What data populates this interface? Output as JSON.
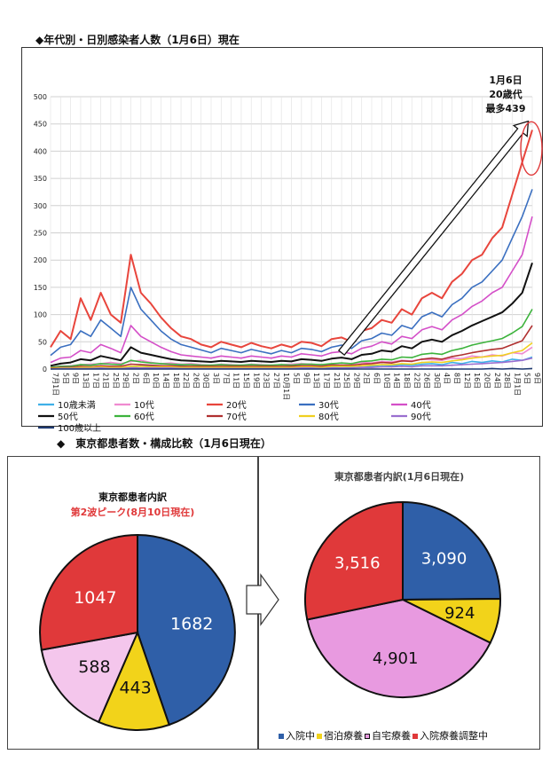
{
  "headings": {
    "top": "◆年代別・日別感染者人数（1月6日）現在",
    "mid": "◆　東京都患者数・構成比較（1月6日現在）"
  },
  "annotation": {
    "line1": "1月6日",
    "line2": "20歳代",
    "line3": "最多439"
  },
  "chart_data": [
    {
      "type": "line",
      "title": "年代別・日別感染者人数（1月6日）現在",
      "ylim": [
        0,
        500
      ],
      "yticks": [
        0,
        50,
        100,
        150,
        200,
        250,
        300,
        350,
        400,
        450,
        500
      ],
      "x_tick_labels": [
        "7月1日",
        "5日",
        "9日",
        "13日",
        "17日",
        "21日",
        "25日",
        "29日",
        "2日",
        "6日",
        "10日",
        "14日",
        "18日",
        "22日",
        "26日",
        "30日",
        "3日",
        "7日",
        "11日",
        "15日",
        "19日",
        "23日",
        "27日",
        "10月1日",
        "5日",
        "9日",
        "13日",
        "17日",
        "21日",
        "25日",
        "29日",
        "2日",
        "6日",
        "10日",
        "14日",
        "18日",
        "22日",
        "26日",
        "30日",
        "4日",
        "8日",
        "12日",
        "16日",
        "20日",
        "24日",
        "28日",
        "1月1日",
        "5日",
        "9日"
      ],
      "grid": true,
      "legend_position": "bottom",
      "series": [
        {
          "name": "10歳未満",
          "color": "#3fb0e8",
          "values": [
            2,
            3,
            2,
            4,
            3,
            2,
            5,
            4,
            3,
            6,
            5,
            4,
            5,
            6,
            4,
            5,
            3,
            4,
            5,
            3,
            4,
            3,
            2,
            4,
            3,
            5,
            4,
            3,
            4,
            5,
            4,
            6,
            5,
            7,
            6,
            8,
            7,
            9,
            10,
            8,
            12,
            10,
            14,
            12,
            15,
            13,
            18,
            16,
            22
          ]
        },
        {
          "name": "10代",
          "color": "#f08ad0",
          "values": [
            3,
            5,
            6,
            8,
            9,
            10,
            12,
            10,
            14,
            16,
            12,
            10,
            11,
            9,
            10,
            8,
            7,
            9,
            8,
            7,
            9,
            8,
            7,
            8,
            9,
            10,
            9,
            8,
            9,
            11,
            10,
            12,
            11,
            14,
            13,
            16,
            15,
            18,
            17,
            16,
            20,
            19,
            24,
            22,
            26,
            24,
            30,
            28,
            40
          ]
        },
        {
          "name": "20代",
          "color": "#e8453c",
          "values": [
            40,
            70,
            55,
            130,
            90,
            140,
            100,
            85,
            210,
            140,
            120,
            95,
            75,
            60,
            55,
            45,
            40,
            50,
            45,
            40,
            48,
            42,
            38,
            45,
            40,
            50,
            48,
            42,
            55,
            58,
            50,
            70,
            75,
            90,
            85,
            110,
            100,
            130,
            140,
            130,
            160,
            175,
            200,
            210,
            240,
            260,
            320,
            380,
            439
          ]
        },
        {
          "name": "30代",
          "color": "#3a6fc0",
          "values": [
            25,
            40,
            45,
            70,
            60,
            90,
            75,
            60,
            150,
            110,
            90,
            70,
            55,
            45,
            40,
            35,
            30,
            38,
            34,
            30,
            36,
            32,
            28,
            34,
            30,
            38,
            36,
            32,
            40,
            44,
            38,
            52,
            56,
            66,
            62,
            80,
            74,
            96,
            104,
            96,
            118,
            130,
            150,
            160,
            180,
            200,
            240,
            280,
            330
          ]
        },
        {
          "name": "40代",
          "color": "#d44fc8",
          "values": [
            12,
            20,
            22,
            34,
            30,
            45,
            38,
            30,
            80,
            60,
            50,
            40,
            32,
            26,
            24,
            22,
            20,
            24,
            22,
            20,
            24,
            22,
            20,
            24,
            22,
            28,
            26,
            24,
            30,
            32,
            28,
            38,
            42,
            50,
            46,
            60,
            56,
            72,
            78,
            72,
            90,
            100,
            115,
            125,
            140,
            150,
            180,
            210,
            280
          ]
        },
        {
          "name": "50代",
          "color": "#111111",
          "values": [
            6,
            10,
            12,
            18,
            16,
            24,
            20,
            16,
            40,
            30,
            26,
            22,
            18,
            16,
            15,
            14,
            13,
            15,
            14,
            13,
            15,
            14,
            13,
            15,
            14,
            18,
            17,
            15,
            19,
            21,
            18,
            26,
            28,
            34,
            32,
            42,
            38,
            50,
            54,
            50,
            62,
            70,
            80,
            88,
            96,
            104,
            120,
            140,
            195
          ]
        },
        {
          "name": "60代",
          "color": "#3cb33c",
          "values": [
            3,
            5,
            5,
            8,
            7,
            10,
            9,
            8,
            16,
            13,
            11,
            10,
            9,
            8,
            8,
            7,
            7,
            8,
            7,
            7,
            8,
            7,
            7,
            8,
            7,
            9,
            9,
            8,
            10,
            11,
            10,
            14,
            15,
            18,
            17,
            22,
            21,
            27,
            29,
            27,
            34,
            38,
            44,
            48,
            52,
            56,
            66,
            78,
            110
          ]
        },
        {
          "name": "70代",
          "color": "#b03030",
          "values": [
            2,
            3,
            3,
            5,
            4,
            6,
            5,
            5,
            9,
            8,
            7,
            6,
            6,
            5,
            5,
            5,
            5,
            5,
            5,
            5,
            5,
            5,
            5,
            5,
            5,
            6,
            6,
            5,
            7,
            7,
            7,
            9,
            10,
            12,
            11,
            15,
            14,
            18,
            20,
            18,
            23,
            26,
            30,
            33,
            36,
            38,
            45,
            52,
            80
          ]
        },
        {
          "name": "80代",
          "color": "#f0d020",
          "values": [
            1,
            2,
            2,
            3,
            3,
            4,
            3,
            3,
            5,
            5,
            4,
            4,
            4,
            3,
            3,
            3,
            3,
            3,
            3,
            3,
            3,
            3,
            3,
            3,
            3,
            4,
            4,
            3,
            5,
            5,
            5,
            6,
            7,
            8,
            8,
            10,
            9,
            12,
            13,
            12,
            15,
            17,
            20,
            22,
            24,
            25,
            30,
            34,
            48
          ]
        },
        {
          "name": "90代",
          "color": "#9a6fd0",
          "values": [
            0,
            1,
            1,
            1,
            1,
            2,
            1,
            1,
            2,
            2,
            2,
            2,
            2,
            1,
            1,
            1,
            1,
            1,
            1,
            1,
            1,
            1,
            1,
            1,
            1,
            2,
            2,
            1,
            2,
            2,
            2,
            3,
            3,
            4,
            4,
            5,
            4,
            6,
            6,
            6,
            7,
            8,
            9,
            10,
            11,
            12,
            14,
            16,
            20
          ]
        },
        {
          "name": "100歳以上",
          "color": "#1f3a70",
          "values": [
            0,
            0,
            0,
            0,
            0,
            0,
            0,
            0,
            0,
            0,
            0,
            0,
            0,
            0,
            0,
            0,
            0,
            0,
            0,
            0,
            0,
            0,
            0,
            0,
            0,
            0,
            0,
            0,
            0,
            0,
            0,
            0,
            0,
            0,
            0,
            0,
            0,
            0,
            0,
            0,
            0,
            0,
            0,
            0,
            1,
            0,
            1,
            0,
            1
          ]
        }
      ]
    },
    {
      "type": "pie",
      "title": "東京都患者内訳",
      "subtitle": "第2波ピーク(8月10日現在)",
      "categories": [
        "入院中",
        "宿泊療養",
        "自宅療養",
        "入院療養調整中"
      ],
      "values": [
        1682,
        443,
        588,
        1047
      ],
      "labels": [
        "1682",
        "443",
        "588",
        "1047"
      ],
      "colors": [
        "#2f5fa8",
        "#f2d31a",
        "#f4c6ec",
        "#e0393a"
      ]
    },
    {
      "type": "pie",
      "title": "東京都患者内訳(1月6日現在)",
      "categories": [
        "入院中",
        "宿泊療養",
        "自宅療養",
        "入院療養調整中"
      ],
      "values": [
        3090,
        924,
        4901,
        3516
      ],
      "labels": [
        "3,090",
        "924",
        "4,901",
        "3,516"
      ],
      "colors": [
        "#2f5fa8",
        "#f2d31a",
        "#e89ae0",
        "#e0393a"
      ],
      "legend": [
        "入院中",
        "宿泊療養",
        "自宅療養",
        "入院療養調整中"
      ]
    }
  ]
}
